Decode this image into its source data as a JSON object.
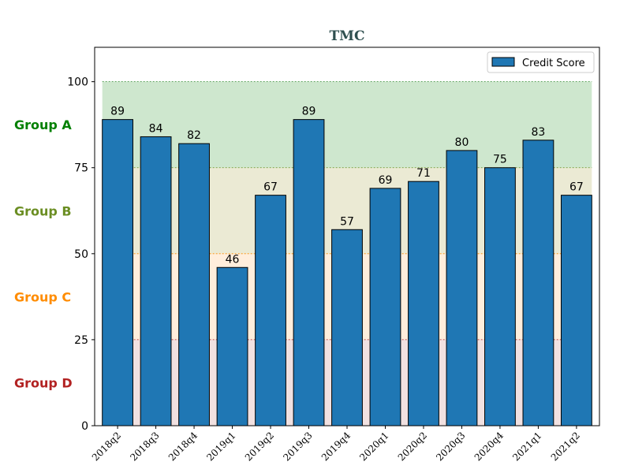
{
  "chart_data": {
    "type": "bar",
    "title": "TMC",
    "categories": [
      "2018q2",
      "2018q3",
      "2018q4",
      "2019q1",
      "2019q2",
      "2019q3",
      "2019q4",
      "2020q1",
      "2020q2",
      "2020q3",
      "2020q4",
      "2021q1",
      "2021q2"
    ],
    "series": [
      {
        "name": "Credit Score",
        "values": [
          89,
          84,
          82,
          46,
          67,
          89,
          57,
          69,
          71,
          80,
          75,
          83,
          67
        ]
      }
    ],
    "ylim": [
      0,
      110
    ],
    "yticks": [
      0,
      25,
      50,
      75,
      100
    ],
    "legend_position": "top-right",
    "bar_color": "#1f77b4",
    "bands": [
      {
        "label": "Group A",
        "from": 75,
        "to": 100,
        "fill": "#a6d3a6",
        "label_color": "#008000"
      },
      {
        "label": "Group B",
        "from": 50,
        "to": 75,
        "fill": "#dad8b0",
        "label_color": "#6b8e23"
      },
      {
        "label": "Group C",
        "from": 25,
        "to": 50,
        "fill": "#ffe0bf",
        "label_color": "#ff8c00"
      },
      {
        "label": "Group D",
        "from": 0,
        "to": 25,
        "fill": "#e6c8c8",
        "label_color": "#b22222"
      }
    ],
    "threshold_colors": {
      "100": "#2e8b2e",
      "75": "#6b8e23",
      "50": "#ff8c00",
      "25": "#b22222"
    }
  }
}
